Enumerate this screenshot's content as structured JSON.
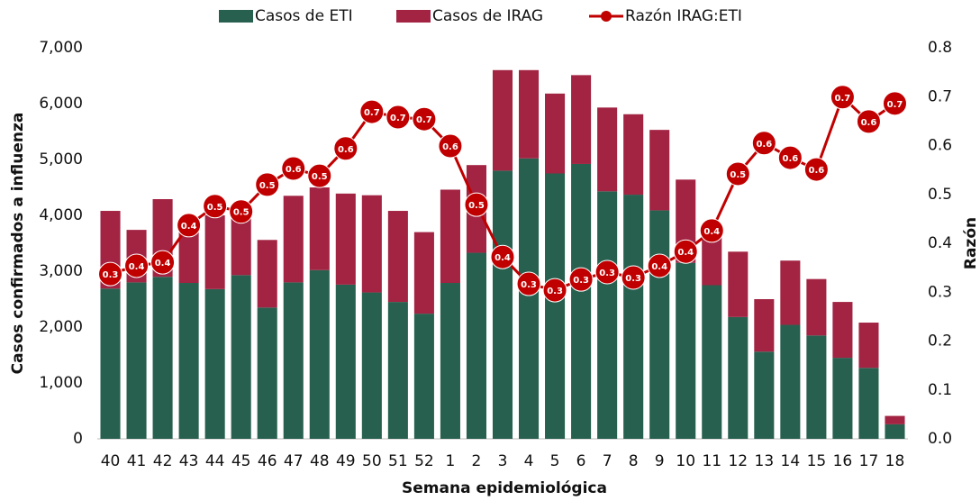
{
  "chart_data": {
    "type": "bar-line",
    "x_label": "Semana epidemiológica",
    "y_label": "Casos confirmados a influenza",
    "y2_label": "Razón",
    "categories": [
      "40",
      "41",
      "42",
      "43",
      "44",
      "45",
      "46",
      "47",
      "48",
      "49",
      "50",
      "51",
      "52",
      "1",
      "2",
      "3",
      "4",
      "5",
      "6",
      "7",
      "8",
      "9",
      "10",
      "11",
      "12",
      "13",
      "14",
      "15",
      "16",
      "17",
      "18"
    ],
    "series": [
      {
        "name": "Casos de ETI",
        "type": "bar",
        "color": "#27604f",
        "values": [
          2690,
          2800,
          2900,
          2790,
          2680,
          2930,
          2350,
          2800,
          3020,
          2760,
          2620,
          2450,
          2240,
          2790,
          3330,
          4800,
          5020,
          4750,
          4920,
          4430,
          4370,
          4090,
          3150,
          2750,
          2180,
          1560,
          2040,
          1850,
          1450,
          1270,
          260
        ]
      },
      {
        "name": "Casos de IRAG",
        "type": "bar",
        "color": "#a22342",
        "values": [
          1390,
          940,
          1390,
          910,
          1320,
          1070,
          1210,
          1550,
          1480,
          1630,
          1740,
          1630,
          1460,
          1670,
          1570,
          1800,
          1580,
          1430,
          1590,
          1500,
          1440,
          1440,
          1490,
          950,
          1170,
          940,
          1150,
          1010,
          1000,
          810,
          150
        ]
      },
      {
        "name": "Razón IRAG:ETI",
        "type": "line",
        "axis": "y2",
        "color": "#c00000",
        "values": [
          0.337,
          0.354,
          0.361,
          0.437,
          0.476,
          0.465,
          0.52,
          0.553,
          0.538,
          0.594,
          0.669,
          0.658,
          0.654,
          0.599,
          0.479,
          0.372,
          0.317,
          0.304,
          0.326,
          0.341,
          0.33,
          0.354,
          0.383,
          0.426,
          0.542,
          0.605,
          0.575,
          0.551,
          0.699,
          0.649,
          0.686
        ],
        "value_labels": [
          "0.3",
          "0.4",
          "0.4",
          "0.4",
          "0.5",
          "0.5",
          "0.5",
          "0.6",
          "0.5",
          "0.6",
          "0.7",
          "0.7",
          "0.7",
          "0.6",
          "0.5",
          "0.4",
          "0.3",
          "0.3",
          "0.3",
          "0.3",
          "0.3",
          "0.4",
          "0.4",
          "0.4",
          "0.5",
          "0.6",
          "0.6",
          "0.6",
          "0.7",
          "0.6",
          "0.7"
        ]
      }
    ],
    "ylim": [
      0,
      7000
    ],
    "yticks": [
      0,
      {
        "value": 1000,
        "label": "1,000"
      },
      {
        "value": 2000,
        "label": "2,000"
      },
      {
        "value": 3000,
        "label": "3,000"
      },
      {
        "value": 4000,
        "label": "4,000"
      },
      {
        "value": 5000,
        "label": "5,000"
      },
      {
        "value": 6000,
        "label": "6,000"
      },
      {
        "value": 7000,
        "label": "7,000"
      }
    ],
    "y2lim": [
      0,
      0.8
    ],
    "y2ticks": [
      {
        "value": 0,
        "label": "0.0"
      },
      0.1,
      0.2,
      0.3,
      0.4,
      0.5,
      0.6,
      0.7,
      0.8
    ],
    "stacked": true,
    "legend": "top"
  }
}
